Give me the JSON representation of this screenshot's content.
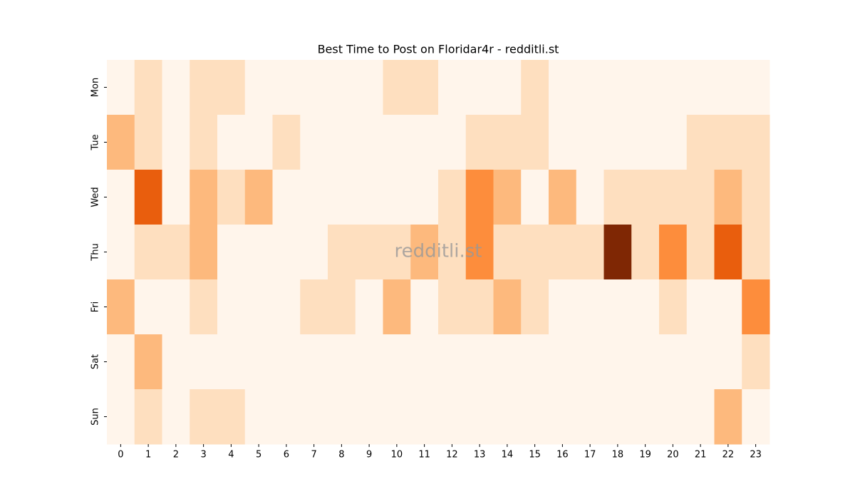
{
  "chart_data": {
    "type": "heatmap",
    "title": "Best Time to Post on Floridar4r - redditli.st",
    "watermark": "redditli.st",
    "colormap": "Oranges",
    "x": [
      "0",
      "1",
      "2",
      "3",
      "4",
      "5",
      "6",
      "7",
      "8",
      "9",
      "10",
      "11",
      "12",
      "13",
      "14",
      "15",
      "16",
      "17",
      "18",
      "19",
      "20",
      "21",
      "22",
      "23"
    ],
    "y": [
      "Mon",
      "Tue",
      "Wed",
      "Thu",
      "Fri",
      "Sat",
      "Sun"
    ],
    "values": [
      [
        0,
        1,
        0,
        1,
        1,
        0,
        0,
        0,
        0,
        0,
        1,
        1,
        0,
        0,
        0,
        1,
        0,
        0,
        0,
        0,
        0,
        0,
        0,
        0
      ],
      [
        2,
        1,
        0,
        1,
        0,
        0,
        1,
        0,
        0,
        0,
        0,
        0,
        0,
        1,
        1,
        1,
        0,
        0,
        0,
        0,
        0,
        1,
        1,
        1
      ],
      [
        0,
        4,
        0,
        2,
        1,
        2,
        0,
        0,
        0,
        0,
        0,
        0,
        1,
        3,
        2,
        0,
        2,
        0,
        1,
        1,
        1,
        1,
        2,
        1
      ],
      [
        0,
        1,
        1,
        2,
        0,
        0,
        0,
        0,
        1,
        1,
        1,
        2,
        1,
        3,
        1,
        1,
        1,
        1,
        6,
        1,
        3,
        1,
        4,
        1
      ],
      [
        2,
        0,
        0,
        1,
        0,
        0,
        0,
        1,
        1,
        0,
        2,
        0,
        1,
        1,
        2,
        1,
        0,
        0,
        0,
        0,
        1,
        0,
        0,
        3
      ],
      [
        0,
        2,
        0,
        0,
        0,
        0,
        0,
        0,
        0,
        0,
        0,
        0,
        0,
        0,
        0,
        0,
        0,
        0,
        0,
        0,
        0,
        0,
        0,
        1
      ],
      [
        0,
        1,
        0,
        1,
        1,
        0,
        0,
        0,
        0,
        0,
        0,
        0,
        0,
        0,
        0,
        0,
        0,
        0,
        0,
        0,
        0,
        0,
        2,
        0
      ]
    ]
  }
}
